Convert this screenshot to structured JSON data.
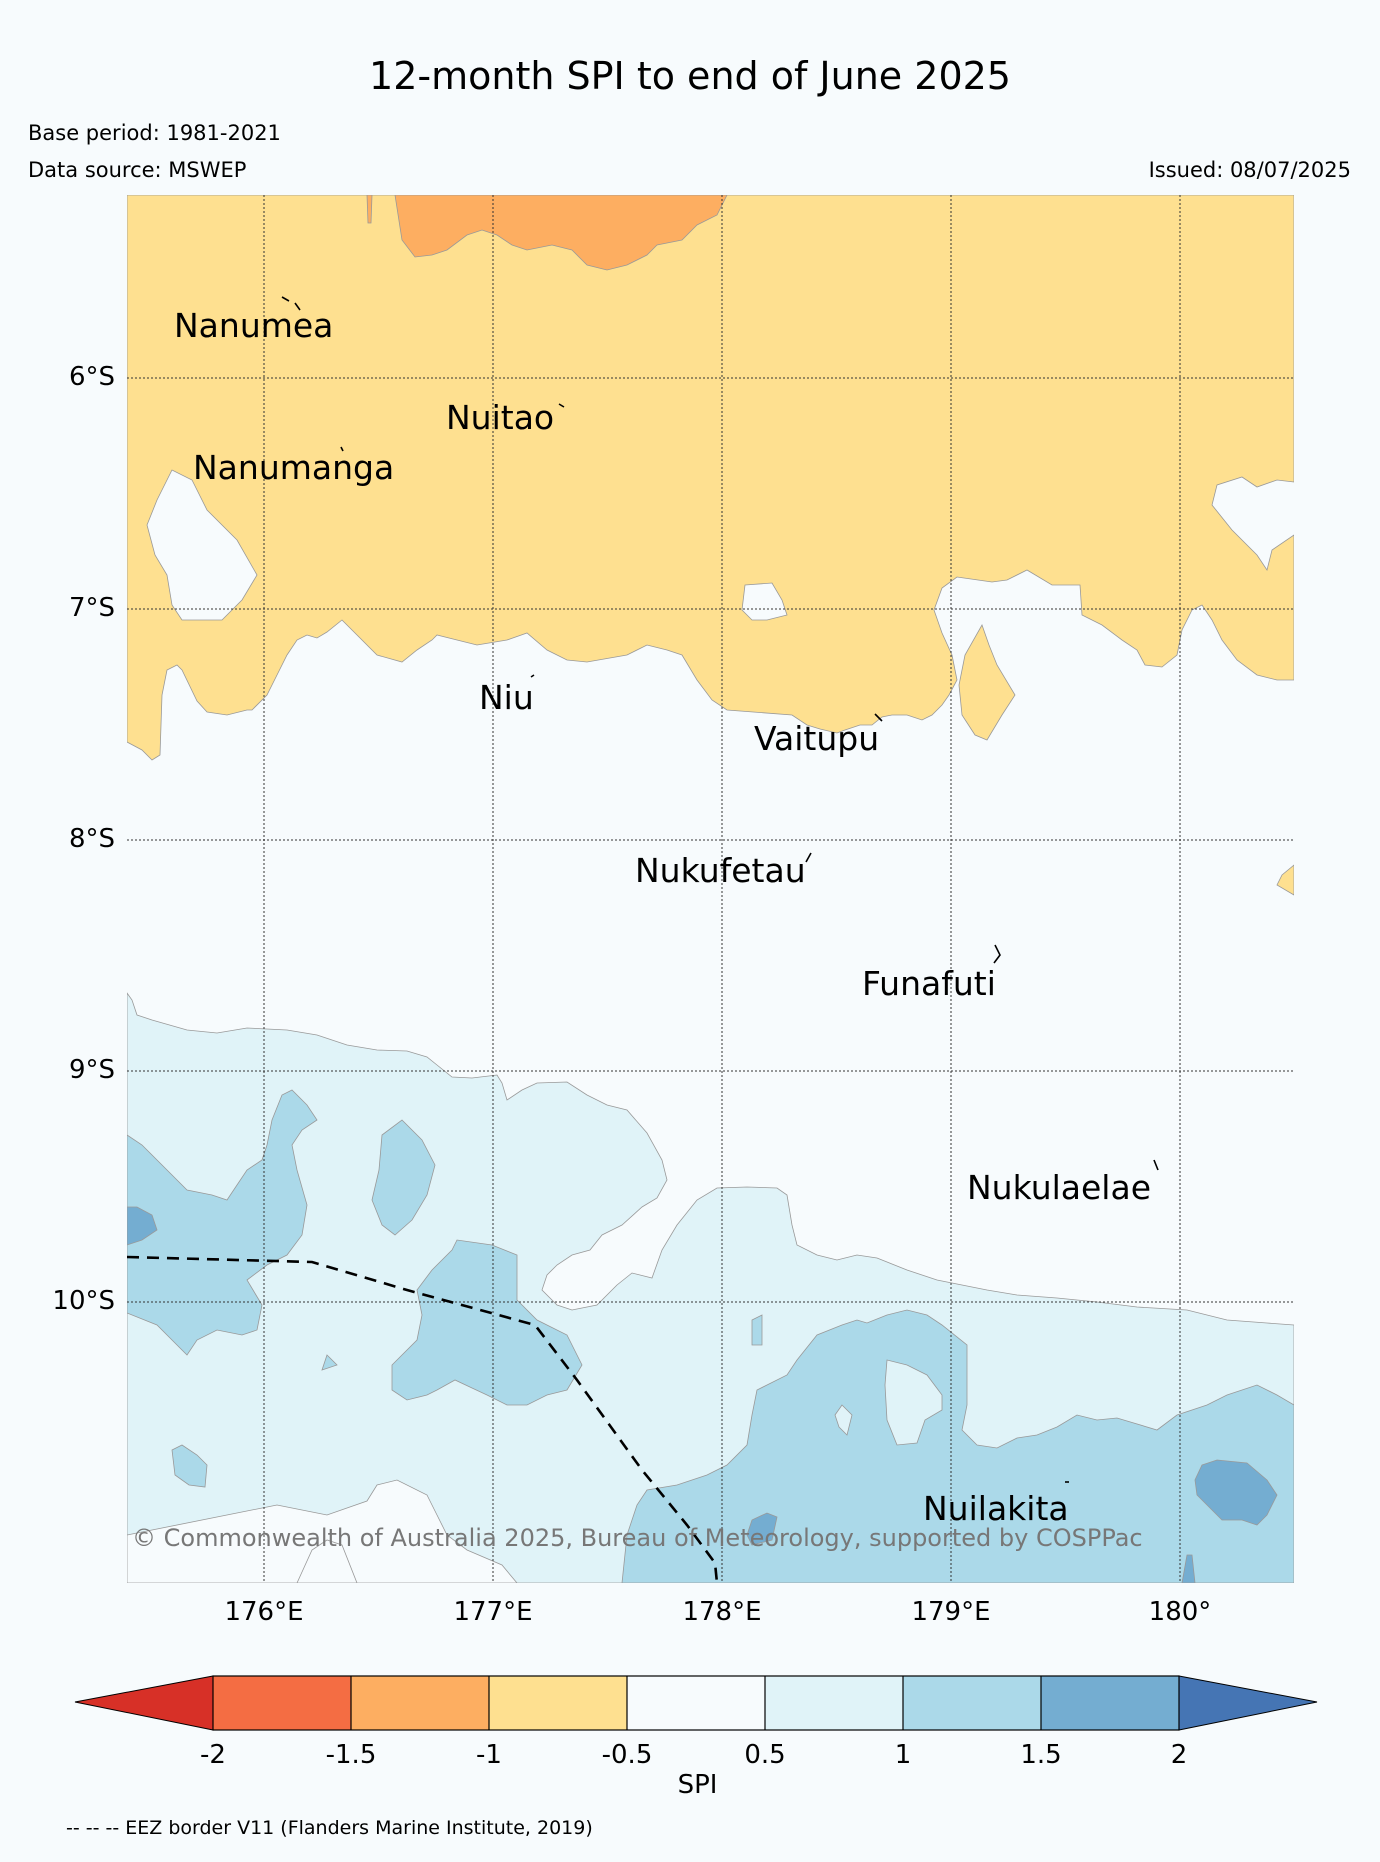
{
  "title": "12-month SPI to end of June 2025",
  "base_period": "Base period: 1981-2021",
  "data_source": "Data source: MSWEP",
  "issued": "Issued: 08/07/2025",
  "copyright": "© Commonwealth of Australia 2025, Bureau of Meteorology, supported by COSPPac",
  "latitude_labels": [
    "6°S",
    "7°S",
    "8°S",
    "9°S",
    "10°S"
  ],
  "longitude_labels": [
    "176°E",
    "177°E",
    "178°E",
    "179°E",
    "180°"
  ],
  "islands": [
    "Nanumea",
    "Nuitao",
    "Nanumanga",
    "Niu",
    "Vaitupu",
    "Nukufetau",
    "Funafuti",
    "Nukulaelae",
    "Nuilakita"
  ],
  "colorbar": {
    "title": "SPI",
    "ticks": [
      "-2",
      "-1.5",
      "-1",
      "-0.5",
      "0.5",
      "1",
      "1.5",
      "2"
    ],
    "colors": {
      "below_-2": "#d73027",
      "-2_to_-1.5": "#f46d43",
      "-1.5_to_-1": "#fdae61",
      "-1_to_-0.5": "#fee090",
      "-0.5_to_0.5": "#f7fbfd",
      "0.5_to_1": "#e0f3f8",
      "1_to_1.5": "#abd9e9",
      "1.5_to_2": "#74add1",
      "above_2": "#4575b4"
    }
  },
  "footnote": "-- -- -- EEZ border V11 (Flanders Marine Institute, 2019)"
}
